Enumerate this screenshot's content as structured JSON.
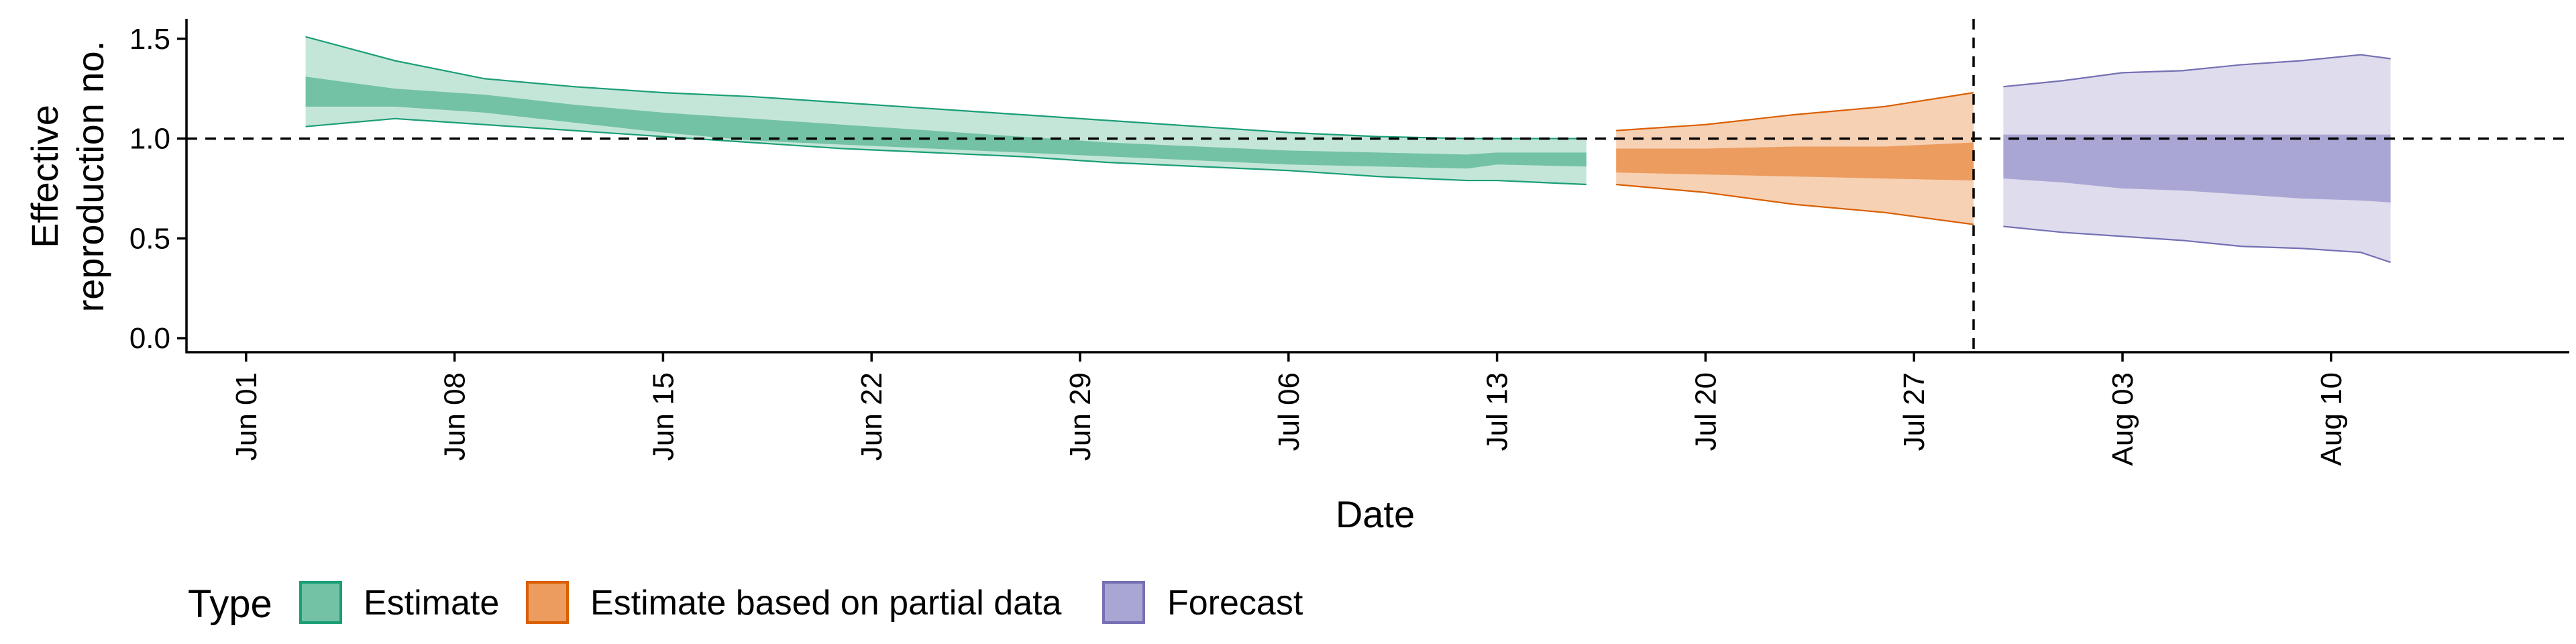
{
  "chart_data": {
    "type": "area",
    "title": "",
    "xlabel": "Date",
    "ylabel_lines": [
      "Effective",
      "reproduction no."
    ],
    "x_ticks": [
      "Jun 01",
      "Jun 08",
      "Jun 15",
      "Jun 22",
      "Jun 29",
      "Jul 06",
      "Jul 13",
      "Jul 20",
      "Jul 27",
      "Aug 03",
      "Aug 10"
    ],
    "x_range": [
      "2020-05-30",
      "2020-08-18"
    ],
    "y_ticks": [
      "0.0",
      "0.5",
      "1.0",
      "1.5"
    ],
    "ylim": [
      -0.07,
      1.6
    ],
    "reference_line_y": 1.0,
    "vertical_line_date": "2020-07-29",
    "grid": false,
    "legend": {
      "title": "Type",
      "position": "bottom",
      "entries": [
        {
          "name": "Estimate",
          "fill": "#73c2a5",
          "stroke": "#1b9e77"
        },
        {
          "name": "Estimate based on partial data",
          "fill": "#ec9c5f",
          "stroke": "#d95f02"
        },
        {
          "name": "Forecast",
          "fill": "#aaa6d4",
          "stroke": "#7570b3"
        }
      ]
    },
    "series": [
      {
        "name": "Estimate",
        "fill_outer": "#c4e6d9",
        "fill_inner": "#73c2a5",
        "stroke": "#1b9e77",
        "x": [
          "2020-06-03",
          "2020-06-06",
          "2020-06-09",
          "2020-06-12",
          "2020-06-15",
          "2020-06-18",
          "2020-06-21",
          "2020-06-24",
          "2020-06-27",
          "2020-06-30",
          "2020-07-03",
          "2020-07-06",
          "2020-07-09",
          "2020-07-12",
          "2020-07-13",
          "2020-07-16"
        ],
        "outer_upper": [
          1.51,
          1.39,
          1.3,
          1.26,
          1.23,
          1.21,
          1.18,
          1.15,
          1.12,
          1.09,
          1.06,
          1.03,
          1.01,
          1.0,
          1.0,
          1.0
        ],
        "inner_upper": [
          1.31,
          1.25,
          1.22,
          1.17,
          1.13,
          1.1,
          1.07,
          1.04,
          1.01,
          0.98,
          0.96,
          0.94,
          0.93,
          0.92,
          0.93,
          0.93
        ],
        "inner_lower": [
          1.16,
          1.16,
          1.13,
          1.08,
          1.03,
          0.99,
          0.97,
          0.95,
          0.93,
          0.91,
          0.89,
          0.87,
          0.86,
          0.85,
          0.87,
          0.86
        ],
        "outer_lower": [
          1.06,
          1.1,
          1.07,
          1.04,
          1.01,
          0.98,
          0.95,
          0.93,
          0.91,
          0.88,
          0.86,
          0.84,
          0.81,
          0.79,
          0.79,
          0.77
        ]
      },
      {
        "name": "Estimate based on partial data",
        "fill_outer": "#f6d1b4",
        "fill_inner": "#ec9c5f",
        "stroke": "#d95f02",
        "x": [
          "2020-07-17",
          "2020-07-20",
          "2020-07-23",
          "2020-07-26",
          "2020-07-29"
        ],
        "outer_upper": [
          1.04,
          1.07,
          1.12,
          1.16,
          1.23
        ],
        "inner_upper": [
          0.95,
          0.95,
          0.96,
          0.96,
          0.98
        ],
        "inner_lower": [
          0.83,
          0.82,
          0.81,
          0.8,
          0.79
        ],
        "outer_lower": [
          0.77,
          0.73,
          0.67,
          0.63,
          0.57
        ]
      },
      {
        "name": "Forecast",
        "fill_outer": "#dedced",
        "fill_inner": "#aaa6d4",
        "stroke": "#7570b3",
        "x": [
          "2020-07-30",
          "2020-08-01",
          "2020-08-03",
          "2020-08-05",
          "2020-08-07",
          "2020-08-09",
          "2020-08-11",
          "2020-08-12"
        ],
        "outer_upper": [
          1.26,
          1.29,
          1.33,
          1.34,
          1.37,
          1.39,
          1.42,
          1.4
        ],
        "inner_upper": [
          1.02,
          1.02,
          1.02,
          1.02,
          1.02,
          1.02,
          1.02,
          1.02
        ],
        "inner_lower": [
          0.8,
          0.78,
          0.75,
          0.74,
          0.72,
          0.7,
          0.69,
          0.68
        ],
        "outer_lower": [
          0.56,
          0.53,
          0.51,
          0.49,
          0.46,
          0.45,
          0.43,
          0.38
        ]
      }
    ]
  }
}
